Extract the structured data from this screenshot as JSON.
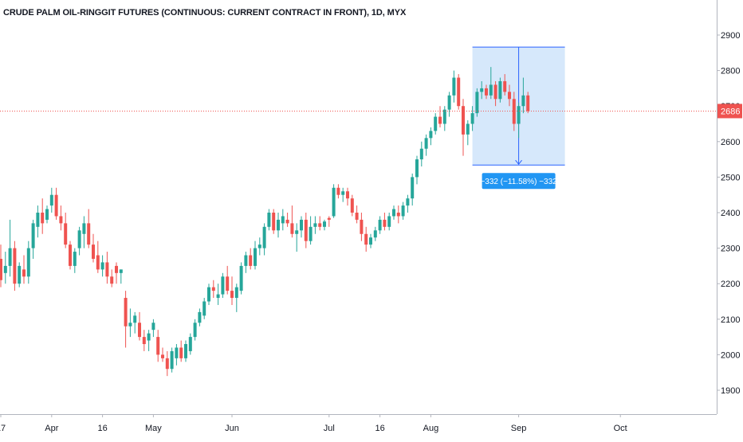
{
  "chart_data": {
    "type": "candlestick",
    "title": "CRUDE PALM OIL-RINGGIT FUTURES (CONTINUOUS: CURRENT CONTRACT IN FRONT), 1D, MYX",
    "ylim": [
      1820,
      3000
    ],
    "yticks": [
      1900,
      2000,
      2100,
      2200,
      2300,
      2400,
      2500,
      2600,
      2700,
      2800,
      2900
    ],
    "xticks": [
      {
        "label": "17",
        "index": 0
      },
      {
        "label": "Apr",
        "index": 11
      },
      {
        "label": "16",
        "index": 22
      },
      {
        "label": "May",
        "index": 33
      },
      {
        "label": "Jun",
        "index": 50
      },
      {
        "label": "Jul",
        "index": 71
      },
      {
        "label": "16",
        "index": 82
      },
      {
        "label": "Aug",
        "index": 93
      },
      {
        "label": "Sep",
        "index": 112
      },
      {
        "label": "Oct",
        "index": 134
      }
    ],
    "last_price": 2686,
    "last_price_label": "2686",
    "measure": {
      "from_index": 102,
      "to_index": 122,
      "start_value": 2866,
      "end_value": 2534,
      "label": "−332 (−11.58%) −332"
    },
    "colors": {
      "up": "#26a69a",
      "down": "#ef5350",
      "measure_fill": "#d1e6fb",
      "measure_line": "#2962ff",
      "measure_label_bg": "#2196f3",
      "price_line": "#ef5350"
    },
    "candles": [
      [
        2270,
        2310,
        2190,
        2210
      ],
      [
        2230,
        2290,
        2200,
        2250
      ],
      [
        2250,
        2380,
        2220,
        2300
      ],
      [
        2300,
        2320,
        2180,
        2200
      ],
      [
        2200,
        2260,
        2190,
        2250
      ],
      [
        2240,
        2280,
        2200,
        2220
      ],
      [
        2220,
        2320,
        2200,
        2300
      ],
      [
        2300,
        2380,
        2270,
        2370
      ],
      [
        2360,
        2420,
        2330,
        2400
      ],
      [
        2400,
        2440,
        2340,
        2370
      ],
      [
        2380,
        2420,
        2370,
        2410
      ],
      [
        2420,
        2470,
        2400,
        2450
      ],
      [
        2450,
        2470,
        2380,
        2390
      ],
      [
        2390,
        2420,
        2350,
        2370
      ],
      [
        2370,
        2400,
        2300,
        2310
      ],
      [
        2310,
        2320,
        2240,
        2250
      ],
      [
        2250,
        2300,
        2230,
        2290
      ],
      [
        2300,
        2360,
        2280,
        2350
      ],
      [
        2340,
        2390,
        2300,
        2370
      ],
      [
        2370,
        2410,
        2300,
        2310
      ],
      [
        2310,
        2340,
        2260,
        2270
      ],
      [
        2280,
        2320,
        2230,
        2240
      ],
      [
        2240,
        2280,
        2220,
        2260
      ],
      [
        2260,
        2290,
        2200,
        2220
      ],
      [
        2220,
        2240,
        2190,
        2200
      ],
      [
        2250,
        2260,
        2200,
        2230
      ],
      [
        2230,
        2240,
        2200,
        2240
      ],
      [
        2160,
        2180,
        2020,
        2080
      ],
      [
        2080,
        2130,
        2050,
        2090
      ],
      [
        2090,
        2120,
        2060,
        2110
      ],
      [
        2090,
        2120,
        2040,
        2050
      ],
      [
        2050,
        2070,
        2010,
        2030
      ],
      [
        2040,
        2070,
        2010,
        2060
      ],
      [
        2070,
        2100,
        2050,
        2090
      ],
      [
        2050,
        2070,
        1980,
        2000
      ],
      [
        2000,
        2020,
        1980,
        1990
      ],
      [
        1990,
        2010,
        1940,
        1960
      ],
      [
        1960,
        2020,
        1950,
        2010
      ],
      [
        1990,
        2030,
        1970,
        2020
      ],
      [
        2020,
        2040,
        1980,
        1990
      ],
      [
        1990,
        2040,
        1980,
        2030
      ],
      [
        2010,
        2060,
        2000,
        2050
      ],
      [
        2050,
        2100,
        2040,
        2090
      ],
      [
        2090,
        2130,
        2080,
        2120
      ],
      [
        2110,
        2160,
        2100,
        2150
      ],
      [
        2150,
        2200,
        2140,
        2190
      ],
      [
        2190,
        2210,
        2160,
        2180
      ],
      [
        2160,
        2200,
        2140,
        2170
      ],
      [
        2170,
        2230,
        2160,
        2220
      ],
      [
        2220,
        2250,
        2170,
        2180
      ],
      [
        2180,
        2220,
        2140,
        2160
      ],
      [
        2160,
        2200,
        2120,
        2190
      ],
      [
        2180,
        2260,
        2170,
        2250
      ],
      [
        2250,
        2290,
        2230,
        2280
      ],
      [
        2280,
        2300,
        2240,
        2250
      ],
      [
        2250,
        2320,
        2240,
        2300
      ],
      [
        2300,
        2330,
        2280,
        2310
      ],
      [
        2300,
        2370,
        2280,
        2360
      ],
      [
        2360,
        2410,
        2350,
        2400
      ],
      [
        2400,
        2410,
        2340,
        2350
      ],
      [
        2350,
        2400,
        2330,
        2380
      ],
      [
        2370,
        2410,
        2350,
        2390
      ],
      [
        2380,
        2400,
        2360,
        2370
      ],
      [
        2370,
        2420,
        2330,
        2340
      ],
      [
        2340,
        2370,
        2290,
        2350
      ],
      [
        2350,
        2390,
        2330,
        2380
      ],
      [
        2380,
        2400,
        2300,
        2320
      ],
      [
        2320,
        2390,
        2310,
        2360
      ],
      [
        2360,
        2390,
        2340,
        2370
      ],
      [
        2370,
        2390,
        2350,
        2360
      ],
      [
        2360,
        2380,
        2350,
        2375
      ],
      [
        2385,
        2390,
        2360,
        2380
      ],
      [
        2390,
        2480,
        2385,
        2470
      ],
      [
        2470,
        2480,
        2440,
        2450
      ],
      [
        2450,
        2470,
        2430,
        2460
      ],
      [
        2460,
        2470,
        2420,
        2440
      ],
      [
        2440,
        2450,
        2390,
        2400
      ],
      [
        2400,
        2420,
        2370,
        2380
      ],
      [
        2380,
        2400,
        2320,
        2340
      ],
      [
        2340,
        2360,
        2290,
        2310
      ],
      [
        2310,
        2340,
        2300,
        2330
      ],
      [
        2330,
        2360,
        2320,
        2350
      ],
      [
        2350,
        2390,
        2340,
        2380
      ],
      [
        2380,
        2400,
        2350,
        2360
      ],
      [
        2360,
        2400,
        2350,
        2390
      ],
      [
        2390,
        2420,
        2380,
        2410
      ],
      [
        2400,
        2420,
        2370,
        2390
      ],
      [
        2390,
        2430,
        2380,
        2420
      ],
      [
        2420,
        2450,
        2400,
        2440
      ],
      [
        2440,
        2510,
        2420,
        2500
      ],
      [
        2500,
        2560,
        2480,
        2550
      ],
      [
        2550,
        2600,
        2530,
        2580
      ],
      [
        2580,
        2620,
        2560,
        2610
      ],
      [
        2610,
        2640,
        2590,
        2630
      ],
      [
        2630,
        2680,
        2620,
        2670
      ],
      [
        2670,
        2700,
        2640,
        2650
      ],
      [
        2650,
        2700,
        2630,
        2690
      ],
      [
        2690,
        2740,
        2670,
        2730
      ],
      [
        2730,
        2800,
        2710,
        2780
      ],
      [
        2780,
        2790,
        2690,
        2700
      ],
      [
        2700,
        2720,
        2560,
        2620
      ],
      [
        2620,
        2660,
        2590,
        2650
      ],
      [
        2650,
        2700,
        2630,
        2680
      ],
      [
        2680,
        2750,
        2670,
        2740
      ],
      [
        2740,
        2770,
        2720,
        2750
      ],
      [
        2750,
        2760,
        2720,
        2730
      ],
      [
        2730,
        2810,
        2720,
        2760
      ],
      [
        2760,
        2770,
        2700,
        2720
      ],
      [
        2720,
        2780,
        2710,
        2770
      ],
      [
        2770,
        2790,
        2730,
        2740
      ],
      [
        2740,
        2760,
        2700,
        2720
      ],
      [
        2720,
        2740,
        2630,
        2650
      ],
      [
        2650,
        2710,
        2610,
        2700
      ],
      [
        2700,
        2780,
        2680,
        2730
      ],
      [
        2730,
        2740,
        2680,
        2686
      ]
    ]
  }
}
